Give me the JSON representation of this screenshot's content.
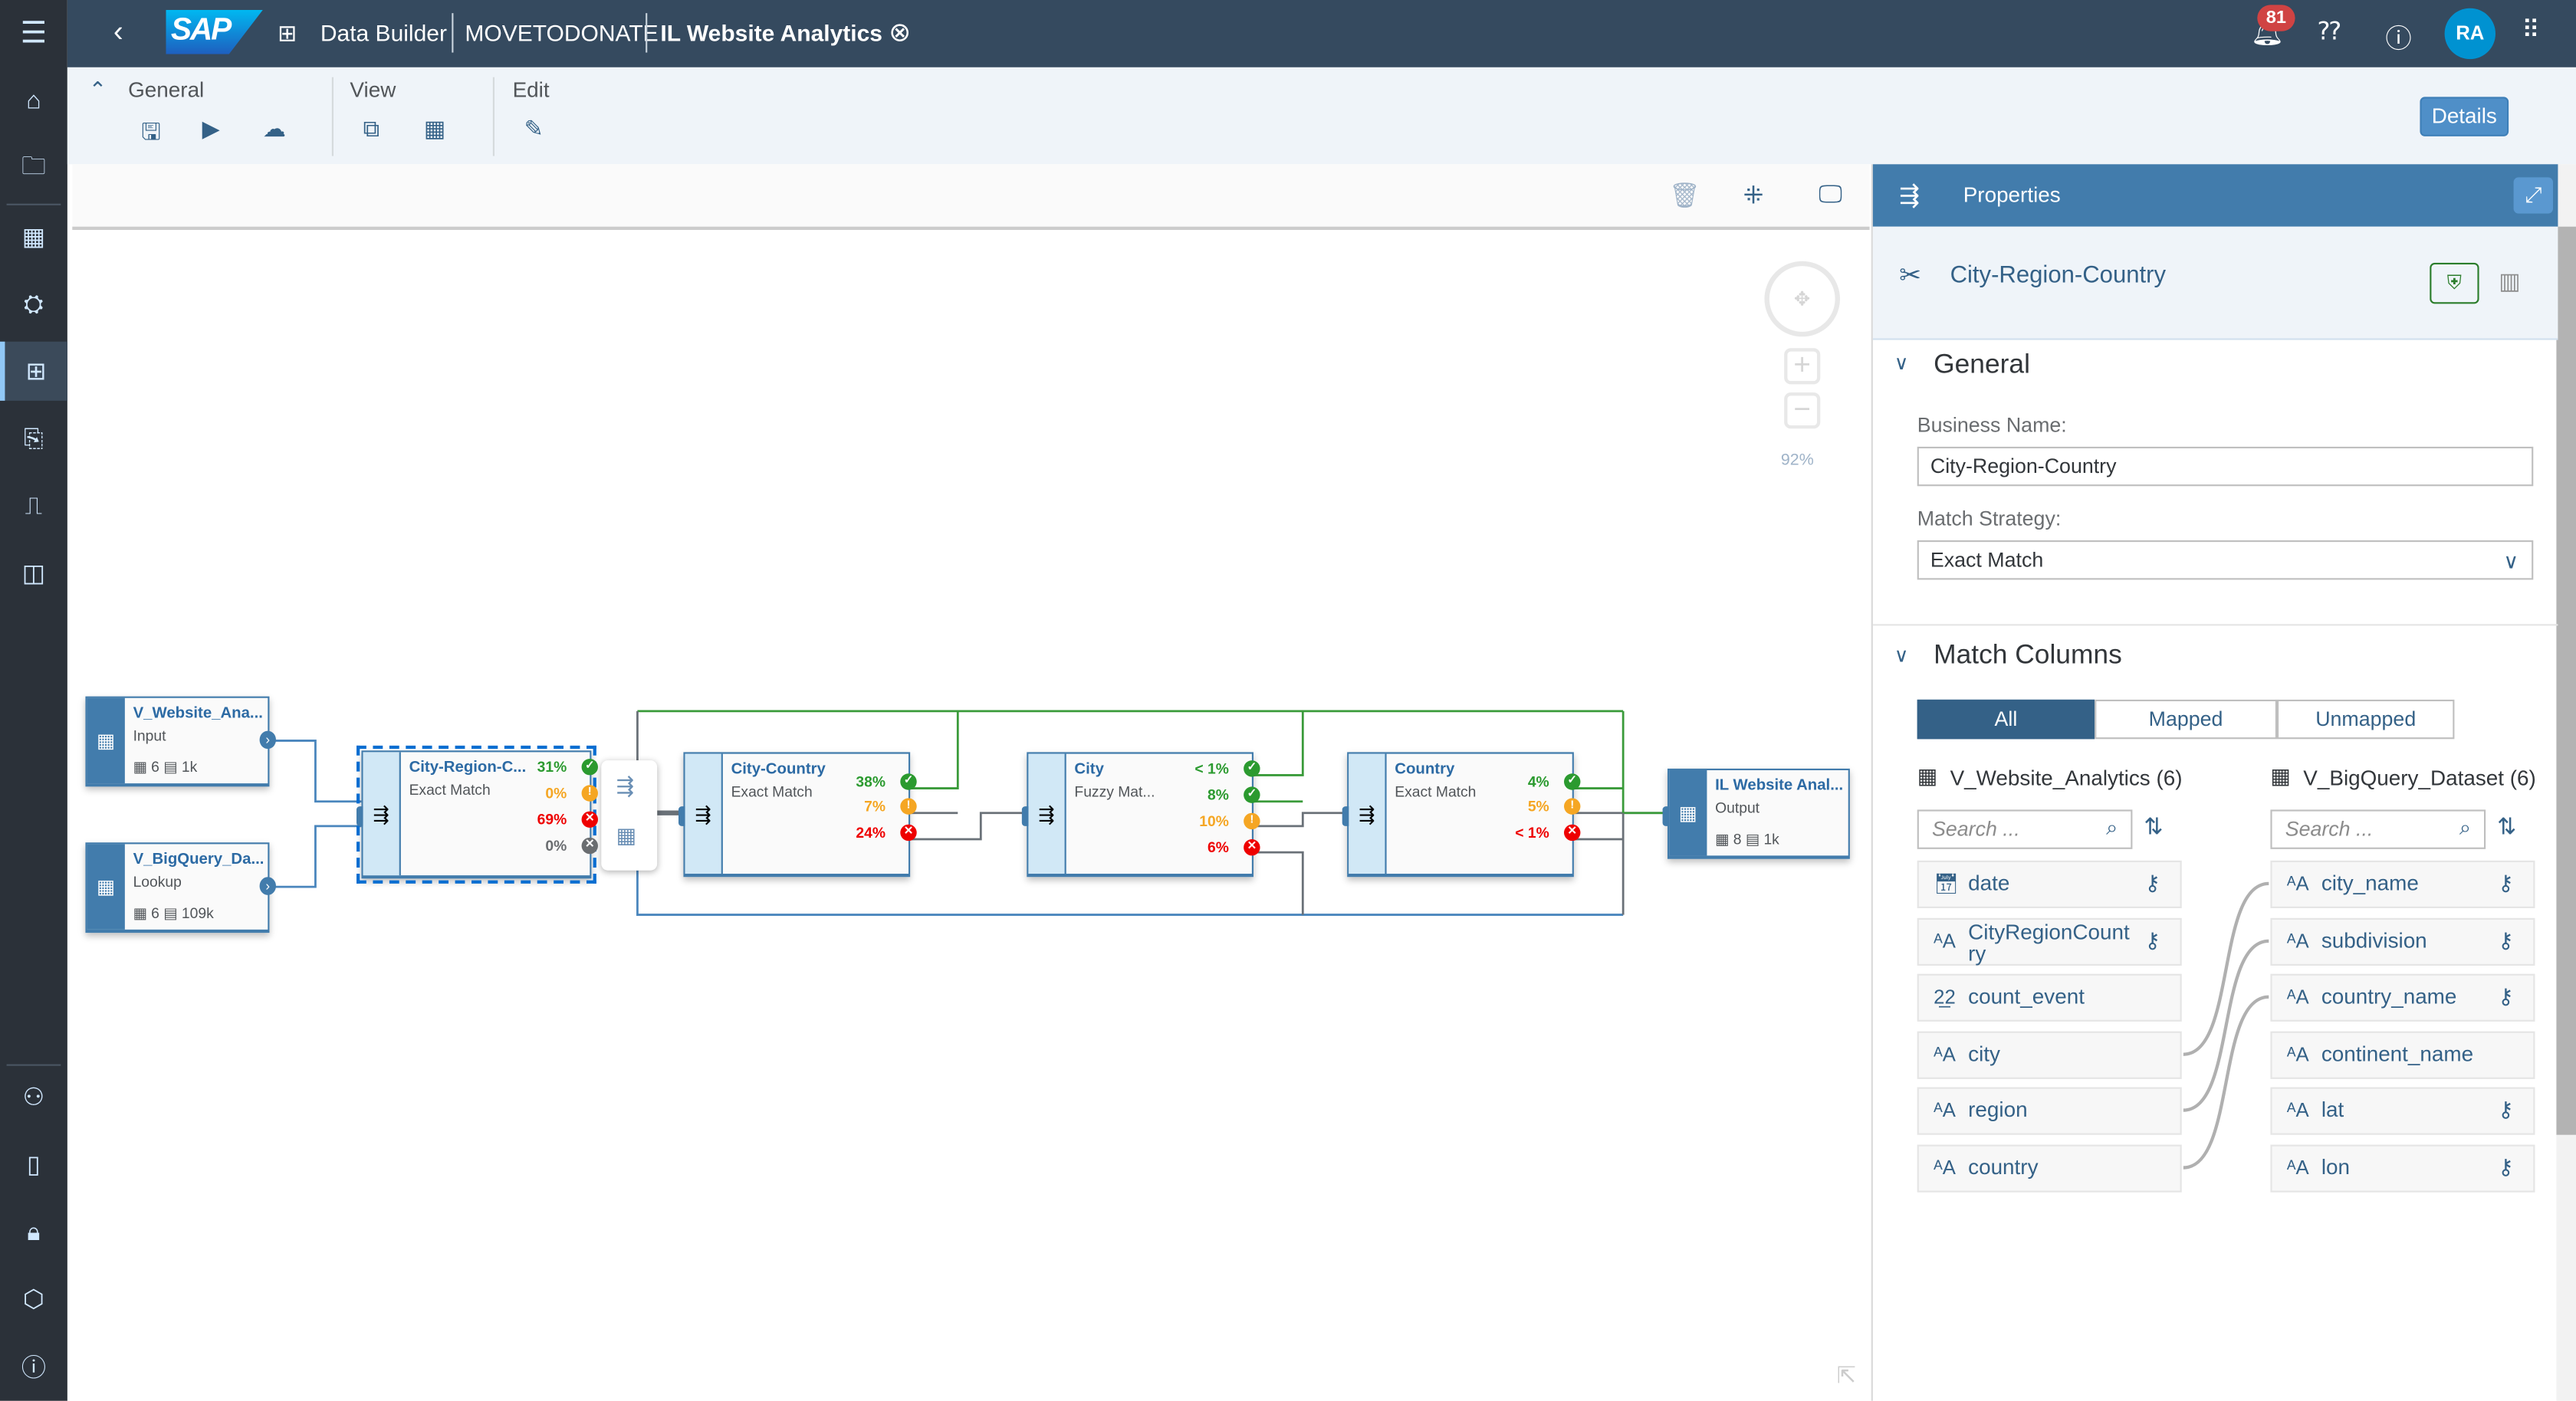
{
  "shell": {
    "title": "Data Builder",
    "space": "MOVETODONATE",
    "model": "IL Website Analytics",
    "notifications": "81",
    "avatar": "RA",
    "logo": "SAP"
  },
  "toolbar": {
    "groups": [
      "General",
      "View",
      "Edit"
    ],
    "details": "Details"
  },
  "canvas": {
    "zoom": "92%",
    "nodes": [
      {
        "id": "src1",
        "kind": "source",
        "name": "V_Website_Ana...",
        "sub": "Input",
        "columns": "6",
        "rows": "1k"
      },
      {
        "id": "src2",
        "kind": "source",
        "name": "V_BigQuery_Da...",
        "sub": "Lookup",
        "columns": "6",
        "rows": "109k"
      },
      {
        "id": "crc",
        "kind": "op",
        "name": "City-Region-C...",
        "sub": "Exact Match",
        "selected": true,
        "outputs": [
          {
            "pct": "31%",
            "status": "matched"
          },
          {
            "pct": "0%",
            "status": "review"
          },
          {
            "pct": "69%",
            "status": "unmatched"
          },
          {
            "pct": "0%",
            "status": "other"
          }
        ]
      },
      {
        "id": "cc",
        "kind": "op",
        "name": "City-Country",
        "sub": "Exact Match",
        "outputs": [
          {
            "pct": "38%",
            "status": "matched"
          },
          {
            "pct": "7%",
            "status": "review"
          },
          {
            "pct": "24%",
            "status": "unmatched"
          }
        ]
      },
      {
        "id": "city",
        "kind": "op",
        "name": "City",
        "sub": "Fuzzy Mat...",
        "outputs": [
          {
            "pct": "< 1%",
            "status": "matched"
          },
          {
            "pct": "8%",
            "status": "matched"
          },
          {
            "pct": "10%",
            "status": "review"
          },
          {
            "pct": "6%",
            "status": "unmatched"
          }
        ]
      },
      {
        "id": "country",
        "kind": "op",
        "name": "Country",
        "sub": "Exact Match",
        "outputs": [
          {
            "pct": "4%",
            "status": "matched"
          },
          {
            "pct": "5%",
            "status": "review"
          },
          {
            "pct": "< 1%",
            "status": "unmatched"
          }
        ]
      },
      {
        "id": "out",
        "kind": "target",
        "name": "IL Website Anal...",
        "sub": "Output",
        "columns": "8",
        "rows": "1k"
      }
    ]
  },
  "colors": {
    "matched": "#2b9a2f",
    "review": "#f5a623",
    "unmatched": "#e00",
    "other": "#6a6d70",
    "accent": "#427cac"
  },
  "properties": {
    "header": "Properties",
    "title": "City-Region-Country",
    "general": {
      "label": "General",
      "business_name_label": "Business Name:",
      "business_name": "City-Region-Country",
      "strategy_label": "Match Strategy:",
      "strategy": "Exact Match"
    },
    "match": {
      "label": "Match Columns",
      "tabs": [
        "All",
        "Mapped",
        "Unmapped"
      ],
      "active_tab": "All",
      "left": {
        "title": "V_Website_Analytics (6)",
        "search_placeholder": "Search ...",
        "columns": [
          {
            "name": "date",
            "type": "date",
            "key": true
          },
          {
            "name": "CityRegionCountry",
            "type": "string",
            "key": true
          },
          {
            "name": "count_event",
            "type": "number",
            "key": false
          },
          {
            "name": "city",
            "type": "string",
            "key": false
          },
          {
            "name": "region",
            "type": "string",
            "key": false
          },
          {
            "name": "country",
            "type": "string",
            "key": false
          }
        ]
      },
      "right": {
        "title": "V_BigQuery_Dataset (6)",
        "search_placeholder": "Search ...",
        "columns": [
          {
            "name": "city_name",
            "type": "string",
            "key": true
          },
          {
            "name": "subdivision",
            "type": "string",
            "key": true
          },
          {
            "name": "country_name",
            "type": "string",
            "key": true
          },
          {
            "name": "continent_name",
            "type": "string",
            "key": false
          },
          {
            "name": "lat",
            "type": "string",
            "key": true
          },
          {
            "name": "lon",
            "type": "string",
            "key": true
          }
        ]
      },
      "mappings": [
        [
          "city",
          "city_name"
        ],
        [
          "region",
          "subdivision"
        ],
        [
          "country",
          "country_name"
        ]
      ]
    }
  }
}
